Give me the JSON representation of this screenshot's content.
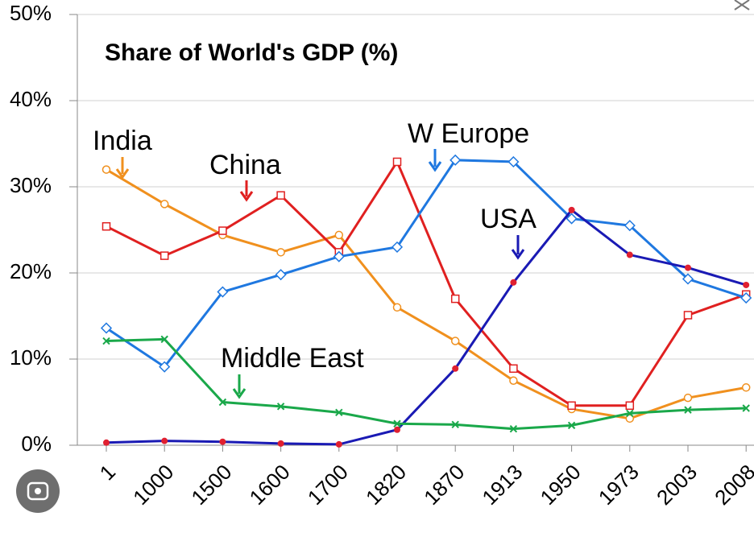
{
  "chart_data": {
    "type": "line",
    "title": "Share of World's GDP (%)",
    "categories": [
      "1",
      "1000",
      "1500",
      "1600",
      "1700",
      "1820",
      "1870",
      "1913",
      "1950",
      "1973",
      "2003",
      "2008"
    ],
    "series": [
      {
        "name": "India",
        "color": "#f0901e",
        "marker": "circle",
        "values": [
          32,
          28,
          24.4,
          22.4,
          24.4,
          16,
          12.1,
          7.5,
          4.2,
          3.1,
          5.5,
          6.7
        ]
      },
      {
        "name": "China",
        "color": "#e02020",
        "marker": "square",
        "values": [
          25.4,
          22,
          24.9,
          29,
          22.4,
          32.9,
          17,
          8.9,
          4.6,
          4.6,
          15.1,
          17.5
        ]
      },
      {
        "name": "W Europe",
        "color": "#1f78e0",
        "marker": "diamond",
        "values": [
          13.6,
          9.1,
          17.8,
          19.8,
          21.9,
          23,
          33.1,
          32.9,
          26.3,
          25.5,
          19.3,
          17.1
        ]
      },
      {
        "name": "USA",
        "color": "#1a1ab4",
        "marker": "dot",
        "values": [
          0.3,
          0.5,
          0.4,
          0.2,
          0.1,
          1.8,
          8.9,
          18.9,
          27.3,
          22.1,
          20.6,
          18.6
        ]
      },
      {
        "name": "Middle East",
        "color": "#1aa84a",
        "marker": "cross",
        "values": [
          12.1,
          12.3,
          5,
          4.5,
          3.8,
          2.5,
          2.4,
          1.9,
          2.3,
          3.7,
          4.1,
          4.3
        ]
      }
    ],
    "ylim": [
      0,
      50
    ],
    "yticks": [
      {
        "value": 0,
        "label": "0%"
      },
      {
        "value": 10,
        "label": "10%"
      },
      {
        "value": 20,
        "label": "20%"
      },
      {
        "value": 30,
        "label": "30%"
      },
      {
        "value": 40,
        "label": "40%"
      },
      {
        "value": 50,
        "label": "50%"
      }
    ],
    "grid": true
  }
}
